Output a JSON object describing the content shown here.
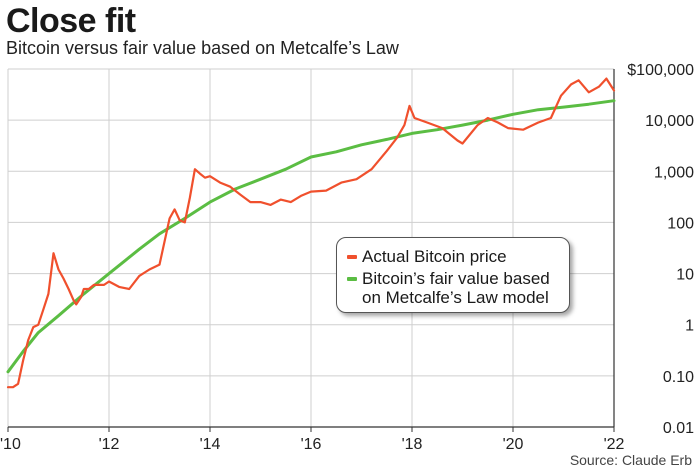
{
  "title": "Close fit",
  "subtitle": "Bitcoin versus fair value based on Metcalfe’s Law",
  "source": "Source: Claude Erb",
  "colors": {
    "actual": "#f0502d",
    "fair": "#5bbd43",
    "grid": "#cfcfcf",
    "axis": "#333333"
  },
  "chart_data": {
    "type": "line",
    "log_scale_y": true,
    "ylim": [
      0.01,
      100000
    ],
    "xlim": [
      2010,
      2022
    ],
    "grid": true,
    "legend_position": "center-right",
    "x_ticks": [
      2010,
      2012,
      2014,
      2016,
      2018,
      2020,
      2022
    ],
    "x_tick_labels": [
      "'10",
      "'12",
      "'14",
      "'16",
      "'18",
      "'20",
      "'22"
    ],
    "y_ticks": [
      0.01,
      0.1,
      1,
      10,
      100,
      1000,
      10000,
      100000
    ],
    "y_tick_labels": [
      "0.01",
      "0.10",
      "1",
      "10",
      "100",
      "1,000",
      "10,000",
      "$100,000"
    ],
    "series": [
      {
        "name": "Actual Bitcoin price",
        "color": "#f0502d",
        "x": [
          2010.0,
          2010.1,
          2010.2,
          2010.3,
          2010.4,
          2010.5,
          2010.6,
          2010.7,
          2010.8,
          2010.9,
          2011.0,
          2011.1,
          2011.2,
          2011.3,
          2011.35,
          2011.45,
          2011.5,
          2011.55,
          2011.6,
          2011.7,
          2011.8,
          2011.9,
          2012.0,
          2012.2,
          2012.4,
          2012.6,
          2012.8,
          2013.0,
          2013.2,
          2013.3,
          2013.4,
          2013.5,
          2013.6,
          2013.7,
          2013.8,
          2013.9,
          2014.0,
          2014.2,
          2014.4,
          2014.6,
          2014.8,
          2015.0,
          2015.2,
          2015.4,
          2015.6,
          2015.8,
          2016.0,
          2016.3,
          2016.6,
          2016.9,
          2017.2,
          2017.5,
          2017.7,
          2017.85,
          2017.95,
          2018.05,
          2018.3,
          2018.6,
          2018.9,
          2019.0,
          2019.3,
          2019.5,
          2019.7,
          2019.9,
          2020.2,
          2020.5,
          2020.75,
          2020.95,
          2021.15,
          2021.3,
          2021.5,
          2021.7,
          2021.85,
          2022.0
        ],
        "values": [
          0.06,
          0.06,
          0.07,
          0.2,
          0.5,
          0.9,
          1.0,
          2.0,
          4.0,
          25.0,
          12.0,
          8.0,
          5.0,
          3.0,
          2.5,
          3.5,
          5.0,
          5.0,
          5.0,
          6.0,
          6.0,
          6.0,
          7.0,
          5.5,
          5.0,
          9.0,
          12.0,
          15.0,
          120.0,
          180.0,
          110.0,
          100.0,
          300.0,
          1100.0,
          900.0,
          750.0,
          800.0,
          600.0,
          500.0,
          350.0,
          250.0,
          250.0,
          220.0,
          280.0,
          250.0,
          330.0,
          400.0,
          420.0,
          600.0,
          700.0,
          1100.0,
          2500.0,
          4500.0,
          8000.0,
          19000.0,
          11000.0,
          9000.0,
          7000.0,
          4000.0,
          3500.0,
          8000.0,
          11000.0,
          9000.0,
          7000.0,
          6500.0,
          9000.0,
          11000.0,
          30000.0,
          50000.0,
          60000.0,
          35000.0,
          45000.0,
          65000.0,
          38000.0
        ]
      },
      {
        "name": "Bitcoin’s fair value based on Metcalfe’s Law model",
        "color": "#5bbd43",
        "x": [
          2010.0,
          2010.3,
          2010.6,
          2011.0,
          2011.5,
          2012.0,
          2012.6,
          2013.0,
          2013.5,
          2014.0,
          2014.5,
          2015.0,
          2015.5,
          2016.0,
          2016.5,
          2017.0,
          2017.5,
          2018.0,
          2018.5,
          2019.0,
          2019.5,
          2020.0,
          2020.5,
          2021.0,
          2021.5,
          2022.0
        ],
        "values": [
          0.12,
          0.3,
          0.7,
          1.5,
          4.0,
          10.0,
          30.0,
          60.0,
          120.0,
          250.0,
          450.0,
          700.0,
          1100.0,
          1900.0,
          2400.0,
          3300.0,
          4200.0,
          5500.0,
          6500.0,
          8000.0,
          10000.0,
          13000.0,
          16000.0,
          18000.0,
          20500.0,
          24000.0
        ]
      }
    ]
  }
}
